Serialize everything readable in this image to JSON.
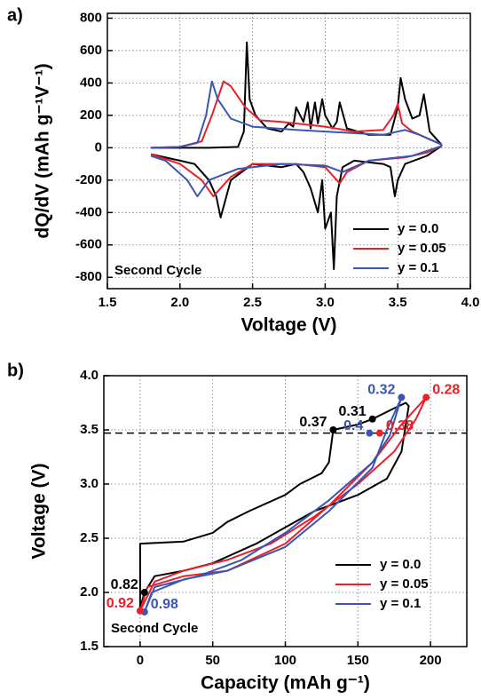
{
  "chart_data": [
    {
      "type": "line",
      "panel": "a)",
      "xlabel": "Voltage (V)",
      "ylabel": "dQ/dV (mAh g⁻¹V⁻¹)",
      "annotation": "Second Cycle",
      "xlim": [
        1.5,
        4.0
      ],
      "ylim": [
        -870,
        830
      ],
      "xticks": [
        1.5,
        {
          "value": 2,
          "label": "2.0"
        },
        2.5,
        {
          "value": 3,
          "label": "3.0"
        },
        3.5,
        {
          "value": 4,
          "label": "4.0"
        }
      ],
      "yticks": [
        -800,
        -600,
        -400,
        -200,
        0,
        200,
        400,
        600,
        800
      ],
      "grid": true,
      "legend": "lower right",
      "series": [
        {
          "name": "y = 0.0",
          "color": "#000000",
          "x": [
            1.8,
            2.0,
            2.2,
            2.4,
            2.44,
            2.46,
            2.48,
            2.52,
            2.6,
            2.7,
            2.75,
            2.78,
            2.8,
            2.85,
            2.88,
            2.9,
            2.93,
            2.95,
            2.98,
            3.0,
            3.05,
            3.08,
            3.1,
            3.15,
            3.3,
            3.45,
            3.5,
            3.52,
            3.55,
            3.6,
            3.65,
            3.68,
            3.72,
            3.8,
            3.8,
            3.7,
            3.55,
            3.5,
            3.48,
            3.45,
            3.4,
            3.2,
            3.12,
            3.08,
            3.06,
            3.04,
            3.0,
            2.98,
            2.95,
            2.9,
            2.85,
            2.8,
            2.7,
            2.5,
            2.35,
            2.28,
            2.25,
            2.2,
            2.1,
            2.0,
            1.8
          ],
          "values": [
            0,
            0,
            0,
            5,
            100,
            650,
            300,
            200,
            120,
            100,
            150,
            130,
            250,
            160,
            280,
            120,
            280,
            150,
            300,
            200,
            120,
            160,
            280,
            120,
            80,
            80,
            250,
            430,
            300,
            180,
            200,
            330,
            100,
            20,
            10,
            -50,
            -100,
            -200,
            -300,
            -120,
            -100,
            -80,
            -120,
            -300,
            -750,
            -400,
            -500,
            -200,
            -400,
            -250,
            -150,
            -100,
            -120,
            -100,
            -200,
            -430,
            -300,
            -200,
            -100,
            -80,
            -40
          ]
        },
        {
          "name": "y = 0.05",
          "color": "#e8202a",
          "x": [
            1.8,
            2.0,
            2.15,
            2.22,
            2.3,
            2.35,
            2.45,
            2.55,
            2.7,
            3.0,
            3.2,
            3.4,
            3.47,
            3.5,
            3.53,
            3.6,
            3.7,
            3.8,
            3.8,
            3.7,
            3.55,
            3.3,
            3.15,
            3.1,
            3.0,
            2.8,
            2.5,
            2.35,
            2.23,
            2.15,
            2.0,
            1.8
          ],
          "values": [
            0,
            5,
            40,
            200,
            410,
            380,
            250,
            170,
            160,
            130,
            100,
            110,
            200,
            270,
            150,
            100,
            60,
            20,
            10,
            -30,
            -60,
            -80,
            -150,
            -220,
            -120,
            -100,
            -100,
            -180,
            -300,
            -200,
            -100,
            -40
          ]
        },
        {
          "name": "y = 0.1",
          "color": "#3a56b0",
          "x": [
            1.8,
            2.0,
            2.12,
            2.18,
            2.22,
            2.26,
            2.35,
            2.5,
            2.8,
            3.2,
            3.4,
            3.5,
            3.55,
            3.65,
            3.8,
            3.8,
            3.6,
            3.3,
            3.12,
            3.0,
            2.7,
            2.4,
            2.2,
            2.12,
            2.05,
            1.9,
            1.8
          ],
          "values": [
            0,
            5,
            30,
            200,
            410,
            300,
            180,
            130,
            110,
            90,
            80,
            100,
            110,
            80,
            20,
            10,
            -50,
            -80,
            -150,
            -110,
            -100,
            -130,
            -200,
            -300,
            -200,
            -80,
            -50
          ]
        }
      ]
    },
    {
      "type": "line",
      "panel": "b)",
      "xlabel": "Capacity (mAh g⁻¹)",
      "ylabel": "Voltage (V)",
      "annotation": "Second Cycle",
      "xlim": [
        -25,
        225
      ],
      "ylim": [
        1.5,
        4.0
      ],
      "xticks": [
        0,
        50,
        100,
        150,
        200
      ],
      "yticks": [
        1.5,
        {
          "value": 2,
          "label": "2.0"
        },
        2.5,
        {
          "value": 3,
          "label": "3.0"
        },
        3.5,
        {
          "value": 4,
          "label": "4.0"
        }
      ],
      "grid": true,
      "legend": "lower right",
      "hline": 3.47,
      "series": [
        {
          "name": "y = 0.0",
          "color": "#000000",
          "x": [
            0,
            0,
            30,
            50,
            60,
            75,
            100,
            110,
            125,
            130,
            133,
            150,
            160,
            175,
            183,
            185,
            180,
            170,
            150,
            120,
            100,
            80,
            50,
            30,
            10,
            3,
            0
          ],
          "values": [
            1.85,
            2.45,
            2.47,
            2.55,
            2.65,
            2.75,
            2.9,
            3.0,
            3.1,
            3.2,
            3.5,
            3.55,
            3.6,
            3.7,
            3.75,
            3.72,
            3.3,
            3.05,
            2.9,
            2.75,
            2.6,
            2.45,
            2.27,
            2.2,
            2.15,
            2.0,
            1.85
          ]
        },
        {
          "name": "y = 0.05",
          "color": "#e8202a",
          "x": [
            0,
            5,
            30,
            60,
            100,
            130,
            160,
            180,
            197,
            190,
            175,
            150,
            120,
            90,
            60,
            30,
            10,
            0
          ],
          "values": [
            1.83,
            2.05,
            2.15,
            2.2,
            2.45,
            2.8,
            3.2,
            3.55,
            3.8,
            3.6,
            3.3,
            3.0,
            2.7,
            2.45,
            2.3,
            2.2,
            2.1,
            1.83
          ]
        },
        {
          "name": "y = 0.1",
          "color": "#3a56b0",
          "x": [
            3,
            8,
            30,
            60,
            100,
            130,
            160,
            170,
            180,
            172,
            160,
            130,
            100,
            70,
            40,
            10,
            3
          ],
          "values": [
            1.82,
            2.0,
            2.12,
            2.2,
            2.42,
            2.75,
            3.15,
            3.5,
            3.8,
            3.45,
            3.2,
            2.85,
            2.55,
            2.3,
            2.15,
            2.05,
            1.82
          ]
        }
      ],
      "point_labels": [
        {
          "text": "0.37",
          "x": 133,
          "y": 3.5,
          "color": "#000000",
          "anchor": "left"
        },
        {
          "text": "0.31",
          "x": 160,
          "y": 3.6,
          "color": "#000000",
          "anchor": "left"
        },
        {
          "text": "0.82",
          "x": 3,
          "y": 2.0,
          "color": "#000000",
          "anchor": "left"
        },
        {
          "text": "0.32",
          "x": 180,
          "y": 3.8,
          "color": "#3a56b0",
          "anchor": "left"
        },
        {
          "text": "0.4",
          "x": 158,
          "y": 3.47,
          "color": "#3a56b0",
          "anchor": "left"
        },
        {
          "text": "0.98",
          "x": 3,
          "y": 1.82,
          "color": "#3a56b0",
          "anchor": "right"
        },
        {
          "text": "0.28",
          "x": 197,
          "y": 3.8,
          "color": "#e8202a",
          "anchor": "right"
        },
        {
          "text": "0.38",
          "x": 165,
          "y": 3.47,
          "color": "#e8202a",
          "anchor": "right"
        },
        {
          "text": "0.92",
          "x": 0,
          "y": 1.83,
          "color": "#e8202a",
          "anchor": "left"
        }
      ]
    }
  ]
}
